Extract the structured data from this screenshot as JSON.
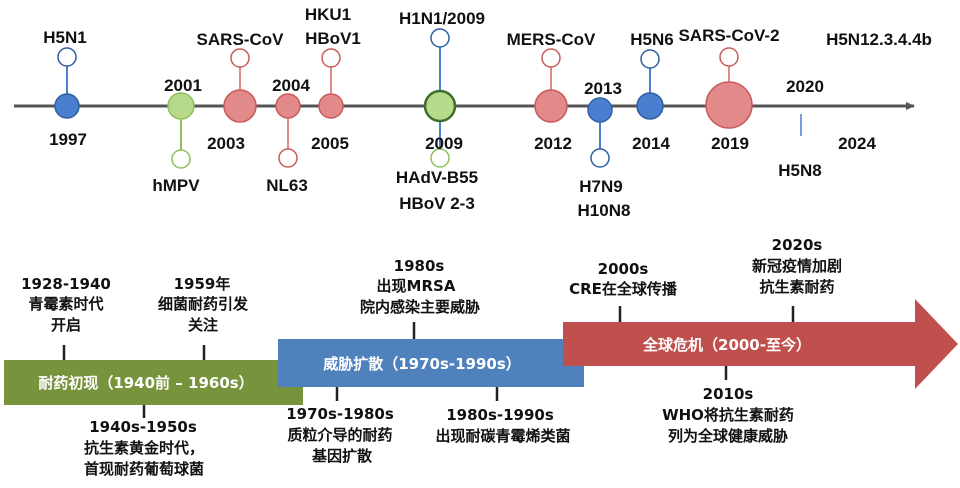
{
  "timeline": {
    "colors": {
      "blue": "#4a7fd0",
      "green": "#b6d98a",
      "red": "#e28a8a",
      "axis": "#555555"
    },
    "years": {
      "y1997": "1997",
      "y2001": "2001",
      "y2003": "2003",
      "y2004": "2004",
      "y2005": "2005",
      "y2009": "2009",
      "y2012": "2012",
      "y2013": "2013",
      "y2014": "2014",
      "y2019": "2019",
      "y2020": "2020",
      "y2024": "2024"
    },
    "events": {
      "h5n1": "H5N1",
      "hmpv": "hMPV",
      "sars_cov": "SARS-CoV",
      "nl63": "NL63",
      "hku1": "HKU1",
      "hbov1": "HBoV1",
      "h1n1": "H1N1/2009",
      "hadv_b55": "HAdV-B55",
      "hbov23": "HBoV 2-3",
      "mers": "MERS-CoV",
      "h7n9": "H7N9",
      "h10n8": "H10N8",
      "h5n6": "H5N6",
      "sars_cov2": "SARS-CoV-2",
      "h5n8": "H5N8",
      "h5n1_2344b": "H5N12.3.4.4b"
    }
  },
  "resistance": {
    "colors": {
      "phase1": "#77933c",
      "phase2": "#4f81bd",
      "phase3": "#c0504d"
    },
    "phases": {
      "p1": "耐药初现（1940前 – 1960s）",
      "p2": "威胁扩散（1970s-1990s）",
      "p3": "全球危机（2000-至今）"
    },
    "notes": {
      "n1928": [
        "1928-1940",
        "青霉素时代",
        "开启"
      ],
      "n1959": [
        "1959年",
        "细菌耐药引发",
        "关注"
      ],
      "n1980": [
        "1980s",
        "出现MRSA",
        "院内感染主要威胁"
      ],
      "n2000": [
        "2000s",
        "CRE在全球传播"
      ],
      "n2020": [
        "2020s",
        "新冠疫情加剧",
        "抗生素耐药"
      ],
      "n1940": [
        "1940s-1950s",
        "抗生素黄金时代，",
        "首现耐药葡萄球菌"
      ],
      "n1970": [
        "1970s-1980s",
        "质粒介导的耐药",
        "基因扩散"
      ],
      "n1990": [
        "1980s-1990s",
        "出现耐碳青霉烯类菌"
      ],
      "n2010": [
        "2010s",
        "WHO将抗生素耐药",
        "列为全球健康威胁"
      ]
    }
  }
}
